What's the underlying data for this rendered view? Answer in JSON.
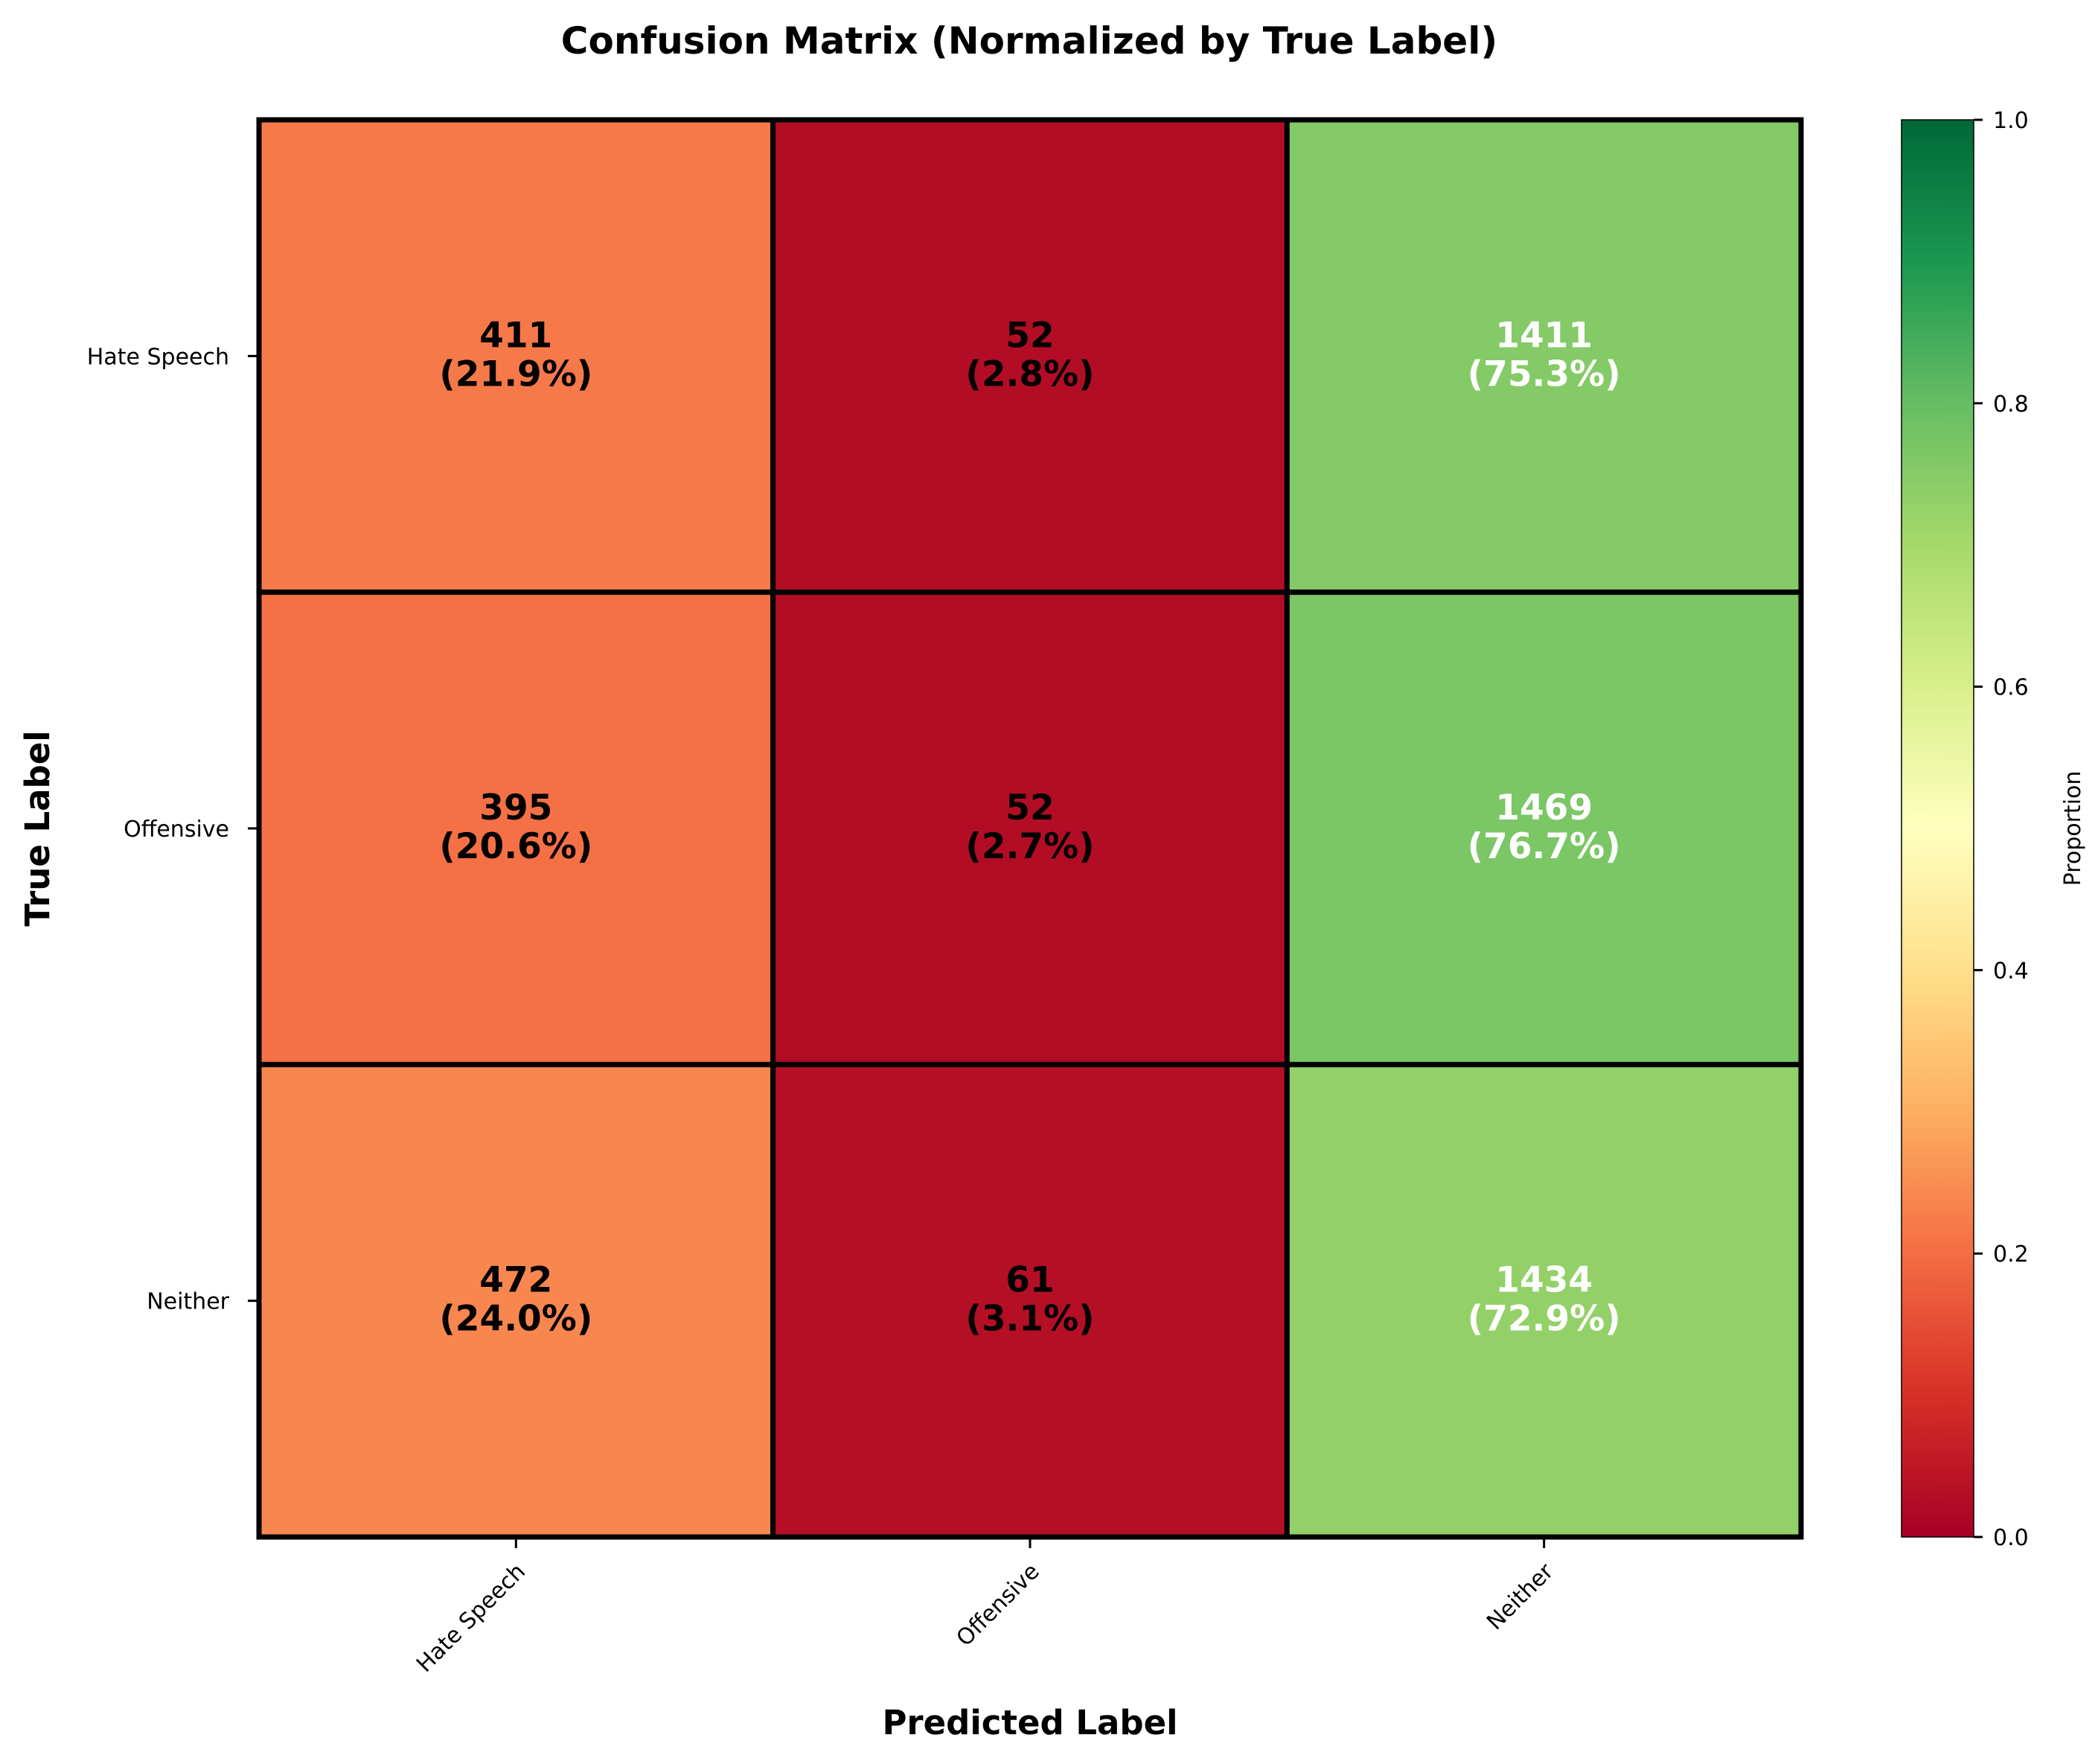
{
  "chart_data": {
    "type": "heatmap",
    "title": "Confusion Matrix (Normalized by True Label)",
    "xlabel": "Predicted Label",
    "ylabel": "True Label",
    "x_categories": [
      "Hate Speech",
      "Offensive",
      "Neither"
    ],
    "y_categories": [
      "Hate Speech",
      "Offensive",
      "Neither"
    ],
    "counts": [
      [
        411,
        52,
        1411
      ],
      [
        395,
        52,
        1469
      ],
      [
        472,
        61,
        1434
      ]
    ],
    "proportions": [
      [
        0.219,
        0.028,
        0.753
      ],
      [
        0.206,
        0.027,
        0.767
      ],
      [
        0.24,
        0.031,
        0.729
      ]
    ],
    "cell_text": [
      [
        [
          "411",
          "(21.9%)"
        ],
        [
          "52",
          "(2.8%)"
        ],
        [
          "1411",
          "(75.3%)"
        ]
      ],
      [
        [
          "395",
          "(20.6%)"
        ],
        [
          "52",
          "(2.7%)"
        ],
        [
          "1469",
          "(76.7%)"
        ]
      ],
      [
        [
          "472",
          "(24.0%)"
        ],
        [
          "61",
          "(3.1%)"
        ],
        [
          "1434",
          "(72.9%)"
        ]
      ]
    ],
    "colorbar": {
      "label": "Proportion",
      "range": [
        0,
        1
      ],
      "ticks": [
        "0.0",
        "0.2",
        "0.4",
        "0.6",
        "0.8",
        "1.0"
      ],
      "colormap": "RdYlGn"
    },
    "grid": false,
    "legend": "none"
  }
}
